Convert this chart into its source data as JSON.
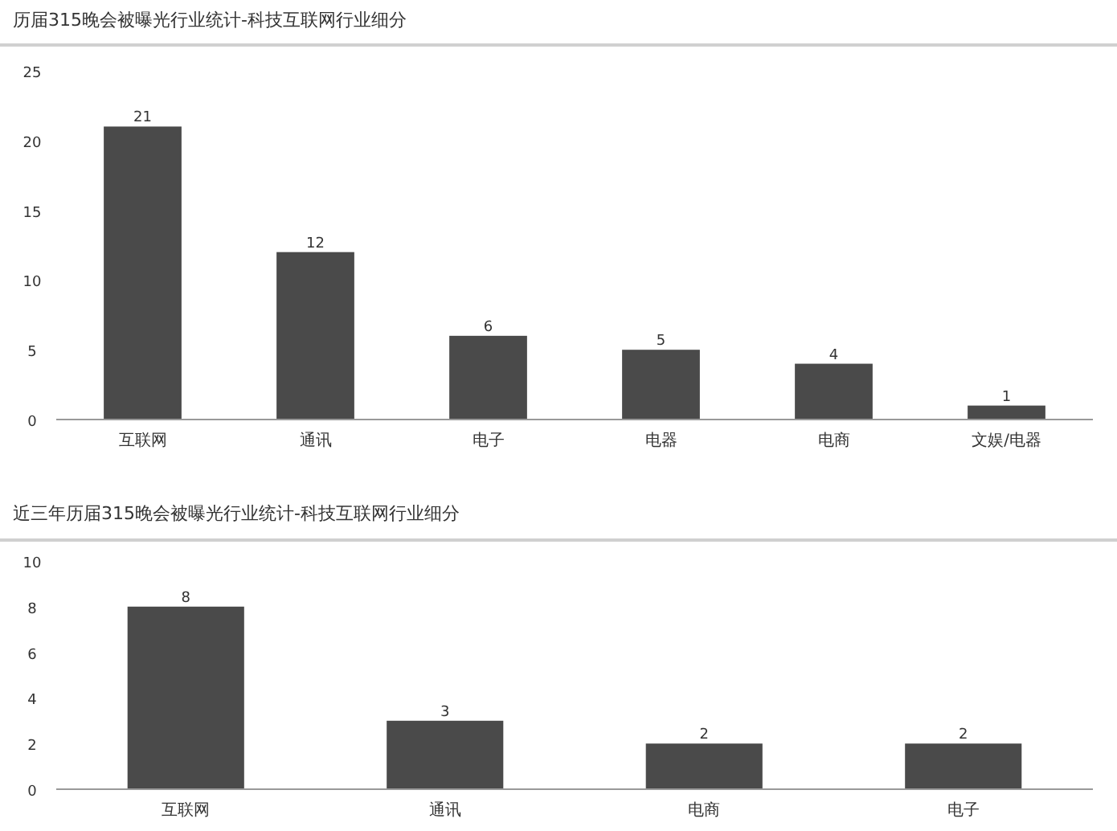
{
  "chart_data": [
    {
      "type": "bar",
      "title": "历届315晚会被曝光行业统计-科技互联网行业细分",
      "categories": [
        "互联网",
        "通讯",
        "电子",
        "电器",
        "电商",
        "文娱/电器"
      ],
      "values": [
        21,
        12,
        6,
        5,
        4,
        1
      ],
      "color": "#4a4a4a",
      "ylim": [
        0,
        25
      ],
      "yticks": [
        0,
        5,
        10,
        15,
        20,
        25
      ],
      "data_labels": true,
      "grid": false,
      "legend": false
    },
    {
      "type": "bar",
      "title": "近三年历届315晚会被曝光行业统计-科技互联网行业细分",
      "categories": [
        "互联网",
        "通讯",
        "电商",
        "电子"
      ],
      "values": [
        8,
        3,
        2,
        2
      ],
      "color": "#4a4a4a",
      "ylim": [
        0,
        10
      ],
      "yticks": [
        0,
        2,
        4,
        6,
        8,
        10
      ],
      "data_labels": true,
      "grid": false,
      "legend": false
    }
  ]
}
